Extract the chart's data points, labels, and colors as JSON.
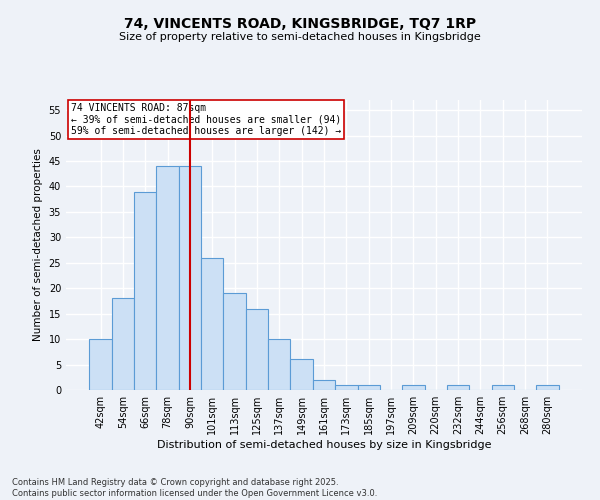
{
  "title": "74, VINCENTS ROAD, KINGSBRIDGE, TQ7 1RP",
  "subtitle": "Size of property relative to semi-detached houses in Kingsbridge",
  "xlabel": "Distribution of semi-detached houses by size in Kingsbridge",
  "ylabel": "Number of semi-detached properties",
  "bins": [
    "42sqm",
    "54sqm",
    "66sqm",
    "78sqm",
    "90sqm",
    "101sqm",
    "113sqm",
    "125sqm",
    "137sqm",
    "149sqm",
    "161sqm",
    "173sqm",
    "185sqm",
    "197sqm",
    "209sqm",
    "220sqm",
    "232sqm",
    "244sqm",
    "256sqm",
    "268sqm",
    "280sqm"
  ],
  "values": [
    10,
    18,
    39,
    44,
    44,
    26,
    19,
    16,
    10,
    6,
    2,
    1,
    1,
    0,
    1,
    0,
    1,
    0,
    1,
    0,
    1
  ],
  "bar_color": "#cce0f5",
  "bar_edge_color": "#5b9bd5",
  "vline_x": 4.0,
  "vline_color": "#cc0000",
  "annotation_text": "74 VINCENTS ROAD: 87sqm\n← 39% of semi-detached houses are smaller (94)\n59% of semi-detached houses are larger (142) →",
  "annotation_box_color": "#ffffff",
  "annotation_box_edge": "#cc0000",
  "ylim": [
    0,
    57
  ],
  "yticks": [
    0,
    5,
    10,
    15,
    20,
    25,
    30,
    35,
    40,
    45,
    50,
    55
  ],
  "footer": "Contains HM Land Registry data © Crown copyright and database right 2025.\nContains public sector information licensed under the Open Government Licence v3.0.",
  "bg_color": "#eef2f8",
  "grid_color": "#ffffff",
  "title_fontsize": 10,
  "subtitle_fontsize": 8,
  "ylabel_fontsize": 7.5,
  "xlabel_fontsize": 8,
  "tick_fontsize": 7,
  "footer_fontsize": 6
}
